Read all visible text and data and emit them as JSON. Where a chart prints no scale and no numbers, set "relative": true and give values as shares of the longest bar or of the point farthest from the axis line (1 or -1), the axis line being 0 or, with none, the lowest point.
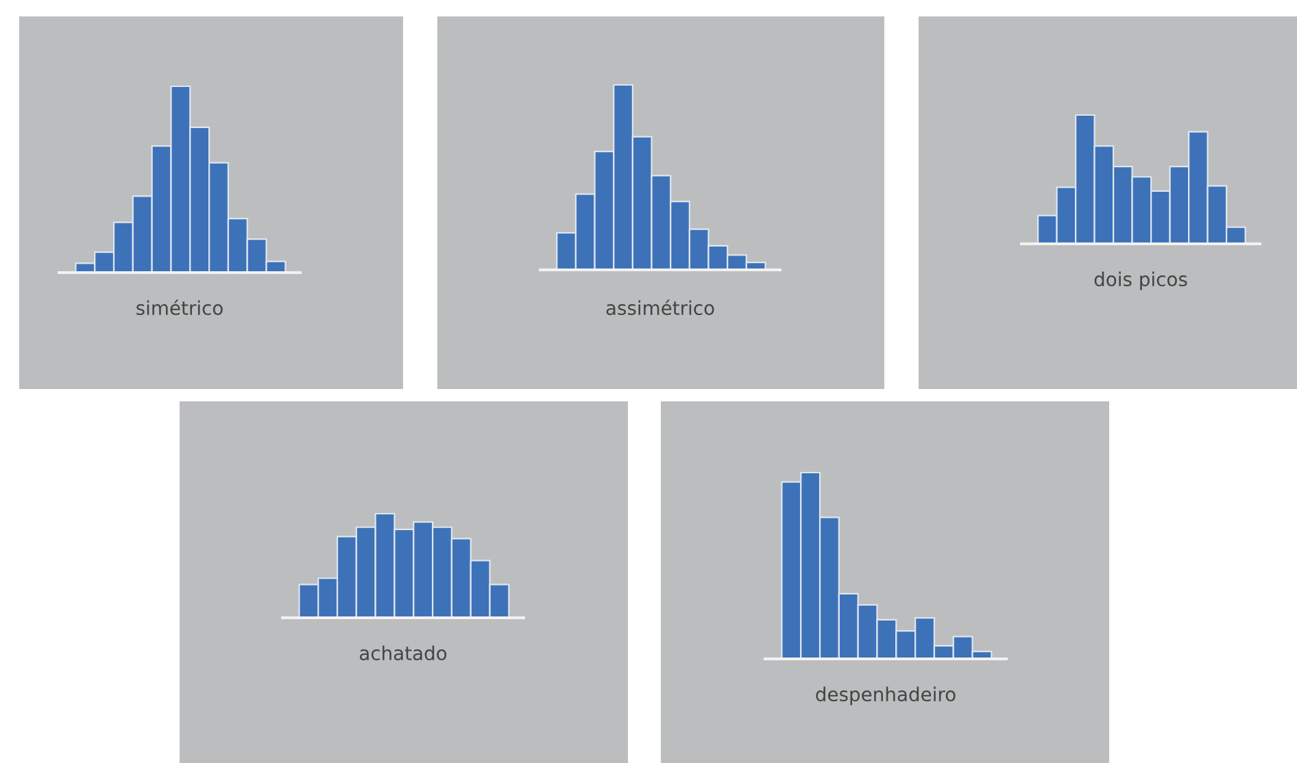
{
  "chart_data": [
    {
      "type": "bar",
      "relative": true,
      "xlabel": "simétrico",
      "categories": [
        null,
        null,
        null,
        null,
        null,
        null,
        null,
        null,
        null,
        null,
        null
      ],
      "color": "#3d72b8",
      "values": [
        0.05,
        0.11,
        0.27,
        0.41,
        0.68,
        1,
        0.78,
        0.59,
        0.29,
        0.18,
        0.06
      ]
    },
    {
      "type": "bar",
      "relative": true,
      "xlabel": "assimétrico",
      "categories": [
        null,
        null,
        null,
        null,
        null,
        null,
        null,
        null,
        null,
        null,
        null
      ],
      "color": "#3d72b8",
      "values": [
        0.2,
        0.41,
        0.64,
        1,
        0.72,
        0.51,
        0.37,
        0.22,
        0.13,
        0.08,
        0.04
      ]
    },
    {
      "type": "bar",
      "relative": true,
      "xlabel": "dois picos",
      "categories": [
        null,
        null,
        null,
        null,
        null,
        null,
        null,
        null,
        null,
        null,
        null
      ],
      "color": "#3d72b8",
      "values": [
        0.22,
        0.44,
        1,
        0.76,
        0.6,
        0.52,
        0.41,
        0.6,
        0.87,
        0.45,
        0.13
      ]
    },
    {
      "type": "bar",
      "relative": true,
      "xlabel": "achatado",
      "categories": [
        null,
        null,
        null,
        null,
        null,
        null,
        null,
        null,
        null,
        null,
        null
      ],
      "color": "#3d72b8",
      "values": [
        0.32,
        0.38,
        0.78,
        0.87,
        1,
        0.85,
        0.92,
        0.87,
        0.76,
        0.55,
        0.32
      ]
    },
    {
      "type": "bar",
      "relative": true,
      "xlabel": "despenhadeiro",
      "categories": [
        null,
        null,
        null,
        null,
        null,
        null,
        null,
        null,
        null,
        null,
        null
      ],
      "color": "#3d72b8",
      "values": [
        0.95,
        1,
        0.76,
        0.35,
        0.29,
        0.21,
        0.15,
        0.22,
        0.07,
        0.12,
        0.04
      ]
    }
  ]
}
